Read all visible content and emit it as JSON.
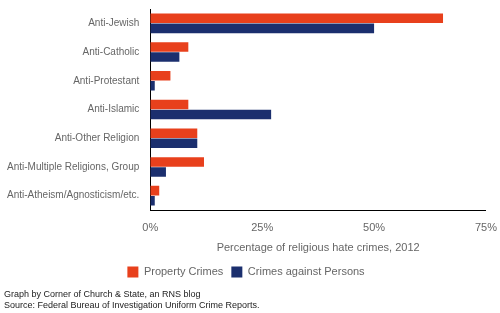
{
  "chart_data": {
    "type": "bar",
    "orientation": "horizontal",
    "categories": [
      "Anti-Jewish",
      "Anti-Catholic",
      "Anti-Protestant",
      "Anti-Islamic",
      "Anti-Other Religion",
      "Anti-Multiple Religions, Group",
      "Anti-Atheism/Agnosticism/etc."
    ],
    "series": [
      {
        "name": "Property Crimes",
        "color": "#E8401C",
        "values": [
          65.4,
          8.5,
          4.5,
          8.5,
          10.5,
          12.0,
          2.0
        ]
      },
      {
        "name": "Crimes against Persons",
        "color": "#1B2F6E",
        "values": [
          50.0,
          6.5,
          1.0,
          27.0,
          10.5,
          3.5,
          1.0
        ]
      }
    ],
    "xlabel": "Percentage of religious hate crimes, 2012",
    "xlim": [
      0,
      75
    ],
    "xticks": [
      {
        "value": 0,
        "label": "0%"
      },
      {
        "value": 25,
        "label": "25%"
      },
      {
        "value": 50,
        "label": "50%"
      },
      {
        "value": 75,
        "label": "75%"
      }
    ],
    "grid": false,
    "legend": "bottom",
    "annotations": [
      "Graph by Corner of Church & State, an RNS blog",
      "Source: Federal Bureau of Investigation Uniform Crime Reports."
    ]
  }
}
